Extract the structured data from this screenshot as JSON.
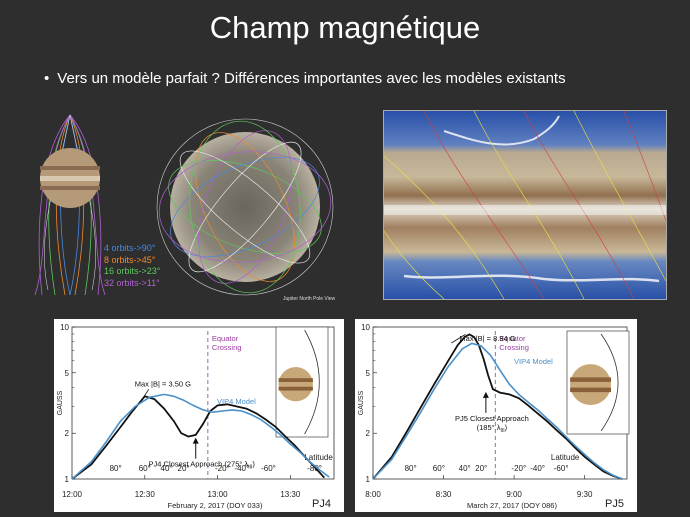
{
  "slide": {
    "title": "Champ magnétique",
    "bullet": "Vers un modèle parfait ? Différences importantes avec les modèles existants"
  },
  "orbit_legend": [
    {
      "text": "4 orbits->90°",
      "color": "#4a88e0"
    },
    {
      "text": "8 orbits->45°",
      "color": "#f08a30"
    },
    {
      "text": "16 orbits->23°",
      "color": "#5ec85e"
    },
    {
      "text": "32 orbits->11°",
      "color": "#b060d0"
    }
  ],
  "pole_caption": "Jupiter North Pole View",
  "chart_data": [
    {
      "type": "line",
      "panel_label": "PJ4",
      "ylabel": "GAUSS",
      "xlabel": "February 2, 2017 (DOY 033)",
      "x_ticks": [
        "12:00",
        "12:30",
        "13:00",
        "13:30"
      ],
      "x_tick_values": [
        0,
        30,
        60,
        90
      ],
      "xlim": [
        0,
        108
      ],
      "ylim": [
        1,
        10
      ],
      "y_scale": "log",
      "y_ticks": [
        "1",
        "2",
        "5",
        "10"
      ],
      "y_tick_values": [
        1,
        2,
        5,
        10
      ],
      "latitude_title": "Latitude",
      "latitude_ticks": [
        {
          "label": "80°",
          "x": 18
        },
        {
          "label": "60°",
          "x": 30
        },
        {
          "label": "40°",
          "x": 39
        },
        {
          "label": "20°",
          "x": 46
        },
        {
          "label": "-20°",
          "x": 62
        },
        {
          "label": "-40°",
          "x": 70
        },
        {
          "label": "-60°",
          "x": 81
        },
        {
          "label": "-80°",
          "x": 100
        }
      ],
      "equator": {
        "label1": "Equator",
        "label2": "Crossing",
        "x": 56
      },
      "max_label": "Max |B| = 3.50 G",
      "max_point": {
        "x": 30,
        "y": 3.5
      },
      "approach_label": "PJ4 Closest Approach (275° λ",
      "approach_sub": "III",
      "approach_close": ")",
      "approach_point": {
        "x": 51,
        "y": 1.9
      },
      "series": [
        {
          "name": "",
          "color": "#111111",
          "x": [
            0,
            8,
            14,
            20,
            25,
            30,
            34,
            38,
            42,
            45,
            48,
            51,
            54,
            57,
            60,
            64,
            68,
            72,
            76,
            80,
            84,
            88,
            92,
            96,
            100,
            104
          ],
          "y": [
            1.0,
            1.25,
            1.65,
            2.2,
            2.8,
            3.5,
            3.35,
            2.9,
            2.4,
            2.0,
            1.9,
            1.95,
            2.3,
            2.8,
            3.05,
            3.1,
            3.0,
            2.9,
            2.7,
            2.45,
            2.2,
            1.9,
            1.65,
            1.4,
            1.2,
            1.02
          ]
        },
        {
          "name": "VIP4 Model",
          "color": "#4a90c8",
          "x": [
            0,
            8,
            14,
            20,
            26,
            32,
            38,
            42,
            46,
            50,
            54,
            58,
            62,
            66,
            70,
            74,
            78,
            82,
            86,
            90,
            94,
            98,
            102,
            106
          ],
          "y": [
            1.0,
            1.3,
            1.75,
            2.4,
            3.0,
            3.45,
            3.6,
            3.5,
            3.3,
            3.05,
            2.85,
            2.75,
            2.8,
            2.85,
            2.8,
            2.65,
            2.45,
            2.2,
            1.95,
            1.7,
            1.5,
            1.3,
            1.15,
            1.03
          ]
        }
      ]
    },
    {
      "type": "line",
      "panel_label": "PJ5",
      "ylabel": "GAUSS",
      "xlabel": "March 27, 2017 (DOY 086)",
      "x_ticks": [
        "8:00",
        "8:30",
        "9:00",
        "9:30"
      ],
      "x_tick_values": [
        0,
        30,
        60,
        90
      ],
      "xlim": [
        0,
        108
      ],
      "ylim": [
        1,
        10
      ],
      "y_scale": "log",
      "y_ticks": [
        "1",
        "2",
        "5",
        "10"
      ],
      "y_tick_values": [
        1,
        2,
        5,
        10
      ],
      "latitude_title": "Latitude",
      "latitude_ticks": [
        {
          "label": "80°",
          "x": 16
        },
        {
          "label": "60°",
          "x": 28
        },
        {
          "label": "40°",
          "x": 39
        },
        {
          "label": "20°",
          "x": 46
        },
        {
          "label": "-20°",
          "x": 62
        },
        {
          "label": "-40°",
          "x": 70
        },
        {
          "label": "-60°",
          "x": 80
        }
      ],
      "equator": {
        "label1": "Equator",
        "label2": "Crossing",
        "x": 52
      },
      "max_label": "Max |B| = 8.94 G",
      "max_point": {
        "x": 41,
        "y": 8.94
      },
      "approach_label": "PJ5 Closest Approach",
      "approach_label2": "(185° λ",
      "approach_sub": "III",
      "approach_close": ")",
      "approach_point": {
        "x": 48,
        "y": 3.8
      },
      "series": [
        {
          "name": "",
          "color": "#111111",
          "x": [
            0,
            8,
            14,
            20,
            26,
            32,
            36,
            39,
            41,
            43,
            45,
            47,
            49,
            51,
            54,
            58,
            62,
            66,
            70,
            74,
            78,
            82,
            86,
            90,
            94,
            98,
            102,
            106
          ],
          "y": [
            1.0,
            1.4,
            2.0,
            2.9,
            4.2,
            6.0,
            7.6,
            8.6,
            8.94,
            8.6,
            7.6,
            6.2,
            4.8,
            3.9,
            3.7,
            3.6,
            3.4,
            3.05,
            2.7,
            2.4,
            2.1,
            1.85,
            1.6,
            1.4,
            1.25,
            1.12,
            1.05,
            1.0
          ]
        },
        {
          "name": "VIP4 Model",
          "color": "#4a90c8",
          "x": [
            0,
            8,
            14,
            20,
            26,
            32,
            38,
            42,
            46,
            50,
            54,
            58,
            62,
            66,
            70,
            74,
            78,
            82,
            86,
            90,
            94,
            98,
            102,
            106
          ],
          "y": [
            1.0,
            1.35,
            1.9,
            2.7,
            3.9,
            5.5,
            7.2,
            7.8,
            7.5,
            6.5,
            5.2,
            4.2,
            3.6,
            3.2,
            2.85,
            2.5,
            2.2,
            1.9,
            1.65,
            1.45,
            1.28,
            1.15,
            1.06,
            1.0
          ]
        }
      ]
    }
  ],
  "colors": {
    "background": "#2e2e2e",
    "equator_line": "#8a5aa0",
    "equator_text": "#9a3aa0",
    "model_line": "#4a90c8",
    "data_line": "#111111"
  }
}
